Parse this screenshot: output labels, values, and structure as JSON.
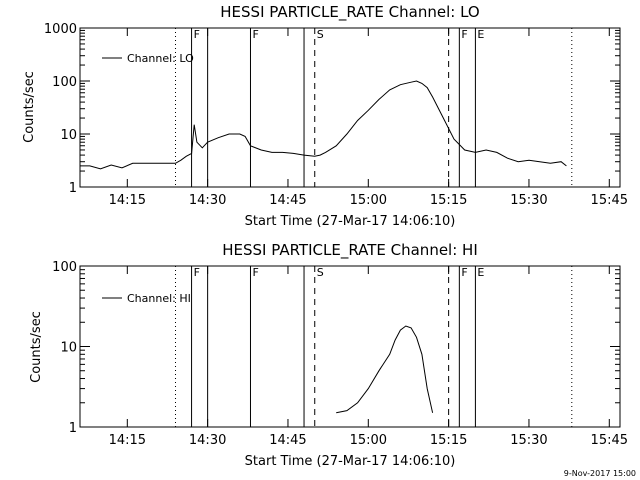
{
  "footer": "9-Nov-2017 15:00",
  "chart_data": [
    {
      "type": "line",
      "title": "HESSI PARTICLE_RATE Channel: LO",
      "xlabel": "Start Time (27-Mar-17 14:06:10)",
      "ylabel": "Counts/sec",
      "yscale": "log",
      "ylim": [
        1,
        1000
      ],
      "xlim": [
        "14:06:10",
        "15:47:00"
      ],
      "x_ticks": [
        "14:15",
        "14:30",
        "14:45",
        "15:00",
        "15:15",
        "15:30",
        "15:45"
      ],
      "y_ticks": [
        "1",
        "10",
        "100",
        "1000"
      ],
      "legend": {
        "position": "top-left",
        "entries": [
          "Channel: LO"
        ]
      },
      "series": [
        {
          "name": "Channel: LO",
          "x": [
            "14:06:10",
            "14:08:00",
            "14:10:00",
            "14:12:00",
            "14:14:00",
            "14:16:00",
            "14:18:00",
            "14:20:00",
            "14:22:00",
            "14:24:00",
            "14:25:00",
            "14:26:00",
            "14:27:00",
            "14:27:30",
            "14:28:00",
            "14:29:00",
            "14:30:00",
            "14:32:00",
            "14:34:00",
            "14:36:00",
            "14:37:00",
            "14:38:00",
            "14:40:00",
            "14:42:00",
            "14:44:00",
            "14:46:00",
            "14:48:00",
            "14:50:00",
            "14:51:00",
            "14:52:00",
            "14:54:00",
            "14:56:00",
            "14:58:00",
            "15:00:00",
            "15:02:00",
            "15:04:00",
            "15:06:00",
            "15:08:00",
            "15:09:00",
            "15:10:00",
            "15:11:00",
            "15:12:00",
            "15:14:00",
            "15:16:00",
            "15:18:00",
            "15:20:00",
            "15:22:00",
            "15:24:00",
            "15:26:00",
            "15:28:00",
            "15:30:00",
            "15:32:00",
            "15:34:00",
            "15:36:00",
            "15:37:00"
          ],
          "y": [
            2.5,
            2.5,
            2.2,
            2.6,
            2.3,
            2.8,
            2.8,
            2.8,
            2.8,
            2.8,
            3.2,
            3.8,
            4.3,
            15,
            7,
            5.5,
            7,
            8.5,
            10,
            10,
            9,
            6,
            5,
            4.5,
            4.5,
            4.3,
            4,
            3.8,
            4,
            4.5,
            6,
            10,
            18,
            28,
            45,
            68,
            85,
            95,
            100,
            90,
            75,
            50,
            20,
            8,
            5,
            4.5,
            5,
            4.5,
            3.5,
            3,
            3.2,
            3,
            2.8,
            3,
            2.5
          ]
        }
      ],
      "annotations": [
        {
          "type": "dotted-line",
          "x": "14:24:00"
        },
        {
          "type": "solid-line",
          "x": "14:27:00",
          "label": "F"
        },
        {
          "type": "solid-line",
          "x": "14:30:00"
        },
        {
          "type": "solid-line",
          "x": "14:38:00",
          "label": "F"
        },
        {
          "type": "solid-line",
          "x": "14:48:00"
        },
        {
          "type": "dashed-line",
          "x": "14:50:00",
          "label": "S"
        },
        {
          "type": "dashed-line",
          "x": "15:15:00"
        },
        {
          "type": "solid-line",
          "x": "15:17:00",
          "label": "F"
        },
        {
          "type": "solid-line",
          "x": "15:20:00",
          "label": "E"
        },
        {
          "type": "dotted-line",
          "x": "15:38:00"
        }
      ]
    },
    {
      "type": "line",
      "title": "HESSI PARTICLE_RATE Channel: HI",
      "xlabel": "Start Time (27-Mar-17 14:06:10)",
      "ylabel": "Counts/sec",
      "yscale": "log",
      "ylim": [
        1,
        100
      ],
      "xlim": [
        "14:06:10",
        "15:47:00"
      ],
      "x_ticks": [
        "14:15",
        "14:30",
        "14:45",
        "15:00",
        "15:15",
        "15:30",
        "15:45"
      ],
      "y_ticks": [
        "1",
        "10",
        "100"
      ],
      "legend": {
        "position": "top-left",
        "entries": [
          "Channel: HI"
        ]
      },
      "series": [
        {
          "name": "Channel: HI",
          "x": [
            "14:54:00",
            "14:56:00",
            "14:58:00",
            "15:00:00",
            "15:02:00",
            "15:04:00",
            "15:05:00",
            "15:06:00",
            "15:07:00",
            "15:08:00",
            "15:09:00",
            "15:10:00",
            "15:11:00",
            "15:12:00"
          ],
          "y": [
            1.5,
            1.6,
            2,
            3,
            5,
            8,
            12,
            16,
            18,
            17,
            13,
            8,
            3,
            1.5
          ]
        }
      ],
      "annotations": [
        {
          "type": "dotted-line",
          "x": "14:24:00"
        },
        {
          "type": "solid-line",
          "x": "14:27:00",
          "label": "F"
        },
        {
          "type": "solid-line",
          "x": "14:30:00"
        },
        {
          "type": "solid-line",
          "x": "14:38:00",
          "label": "F"
        },
        {
          "type": "solid-line",
          "x": "14:48:00"
        },
        {
          "type": "dashed-line",
          "x": "14:50:00",
          "label": "S"
        },
        {
          "type": "dashed-line",
          "x": "15:15:00"
        },
        {
          "type": "solid-line",
          "x": "15:17:00",
          "label": "F"
        },
        {
          "type": "solid-line",
          "x": "15:20:00",
          "label": "E"
        },
        {
          "type": "dotted-line",
          "x": "15:38:00"
        }
      ]
    }
  ]
}
